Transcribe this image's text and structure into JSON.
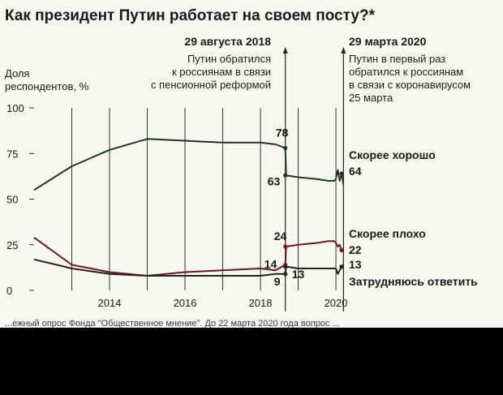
{
  "title": "Как президент Путин работает на своем посту?*",
  "footnote": "...ежный опрос Фонда \"Общественное мнение\". До 22 марта 2020 года вопрос ...",
  "events": [
    {
      "date": "29 августа 2018",
      "lines": [
        "Путин обратился",
        "к россиянам в связи",
        "с пенсионной реформой"
      ]
    },
    {
      "date": "29 марта 2020",
      "lines": [
        "Путин в первый раз",
        "обратился к россиянам",
        "в связи с коронавирусом",
        "25 марта"
      ]
    }
  ],
  "chart_data": {
    "type": "line",
    "title": "Как президент Путин работает на своем посту?*",
    "ylabel_lines": [
      "Доля",
      "респондентов, %"
    ],
    "ylim": [
      0,
      100
    ],
    "yticks": [
      0,
      25,
      50,
      75,
      100
    ],
    "xlim": [
      2012.0,
      2020.3
    ],
    "xticks": [
      2014,
      2016,
      2018,
      2020
    ],
    "grid": "vertical",
    "series": [
      {
        "name": "Скорее хорошо",
        "color": "#1c3a1c",
        "legend_value": "64",
        "x": [
          2012.0,
          2013.0,
          2014.0,
          2015.0,
          2016.0,
          2017.0,
          2018.0,
          2018.4,
          2018.66,
          2018.68,
          2019.0,
          2019.5,
          2019.8,
          2019.9,
          2019.95,
          2020.0,
          2020.05,
          2020.1,
          2020.15,
          2020.2
        ],
        "y": [
          55,
          68,
          77,
          83,
          82,
          81,
          81,
          80,
          78,
          63,
          62,
          61,
          60,
          60,
          60,
          61,
          66,
          60,
          64,
          58
        ]
      },
      {
        "name": "Скорее плохо",
        "color": "#6b1a1a",
        "legend_value": "22",
        "x": [
          2012.0,
          2013.0,
          2014.0,
          2015.0,
          2016.0,
          2017.0,
          2018.0,
          2018.4,
          2018.66,
          2018.68,
          2019.0,
          2019.5,
          2019.8,
          2019.9,
          2019.95,
          2020.0,
          2020.05,
          2020.1,
          2020.15,
          2020.2
        ],
        "y": [
          29,
          14,
          10,
          8,
          10,
          11,
          12,
          11,
          14,
          24,
          25,
          26,
          27,
          27,
          27,
          26,
          24,
          25,
          22,
          22
        ]
      },
      {
        "name": "Затрудняюсь ответить",
        "color": "#222222",
        "legend_value": "13",
        "x": [
          2012.0,
          2013.0,
          2014.0,
          2015.0,
          2016.0,
          2017.0,
          2018.0,
          2018.4,
          2018.66,
          2018.68,
          2019.0,
          2019.5,
          2019.8,
          2019.9,
          2019.95,
          2020.0,
          2020.05,
          2020.1,
          2020.15,
          2020.2
        ],
        "y": [
          17,
          12,
          9,
          8,
          8,
          8,
          8,
          9,
          9,
          13,
          12,
          12,
          12,
          12,
          12,
          12,
          9,
          11,
          13,
          13
        ]
      }
    ],
    "annotations": [
      {
        "text": "78",
        "x": 2018.66,
        "y": 78,
        "series": "Скорее хорошо"
      },
      {
        "text": "63",
        "x": 2018.66,
        "y": 63,
        "series": "Скорее хорошо"
      },
      {
        "text": "24",
        "x": 2018.66,
        "y": 24,
        "series": "Скорее плохо"
      },
      {
        "text": "14",
        "x": 2018.66,
        "y": 14,
        "series": "Скорее плохо"
      },
      {
        "text": "9",
        "x": 2018.66,
        "y": 9,
        "series": "Затрудняюсь ответить"
      },
      {
        "text": "13",
        "x": 2018.66,
        "y": 13,
        "series": "Затрудняюсь ответить"
      }
    ],
    "event_lines_x": [
      2018.66,
      2020.2
    ]
  }
}
